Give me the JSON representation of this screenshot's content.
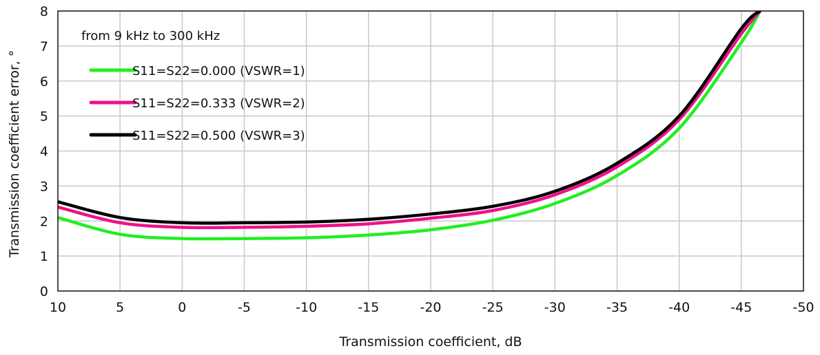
{
  "chart_data": {
    "type": "line",
    "title": "",
    "xlabel": "Transmission coefficient, dB",
    "ylabel": "Transmission coefficient error, °",
    "xlim": [
      10,
      -50
    ],
    "ylim": [
      0,
      8
    ],
    "x_ticks": [
      10,
      5,
      0,
      -5,
      -10,
      -15,
      -20,
      -25,
      -30,
      -35,
      -40,
      -45,
      -50
    ],
    "x_tick_labels": [
      "10",
      "5",
      "0",
      "-5",
      "-10",
      "-15",
      "-20",
      "-25",
      "-30",
      "-35",
      "-40",
      "-45",
      "-50"
    ],
    "y_ticks": [
      0,
      1,
      2,
      3,
      4,
      5,
      6,
      7,
      8
    ],
    "y_tick_labels": [
      "0",
      "1",
      "2",
      "3",
      "4",
      "5",
      "6",
      "7",
      "8"
    ],
    "grid": true,
    "annotation": "from 9 kHz to 300 kHz",
    "legend_position": "top-left",
    "x": [
      10,
      5,
      0,
      -5,
      -10,
      -15,
      -20,
      -25,
      -30,
      -35,
      -40,
      -45,
      -46.5
    ],
    "series": [
      {
        "name": "S11=S22=0.000 (VSWR=1)",
        "color": "#22ee22",
        "values": [
          2.1,
          1.62,
          1.5,
          1.5,
          1.52,
          1.6,
          1.75,
          2.02,
          2.5,
          3.3,
          4.65,
          7.1,
          8.0
        ]
      },
      {
        "name": "S11=S22=0.333 (VSWR=2)",
        "color": "#ee1188",
        "values": [
          2.4,
          1.95,
          1.82,
          1.82,
          1.85,
          1.92,
          2.08,
          2.3,
          2.75,
          3.55,
          4.9,
          7.35,
          8.0
        ]
      },
      {
        "name": "S11=S22=0.500 (VSWR=3)",
        "color": "#000000",
        "values": [
          2.55,
          2.1,
          1.95,
          1.95,
          1.97,
          2.05,
          2.2,
          2.42,
          2.85,
          3.65,
          5.0,
          7.5,
          8.0
        ]
      }
    ]
  }
}
